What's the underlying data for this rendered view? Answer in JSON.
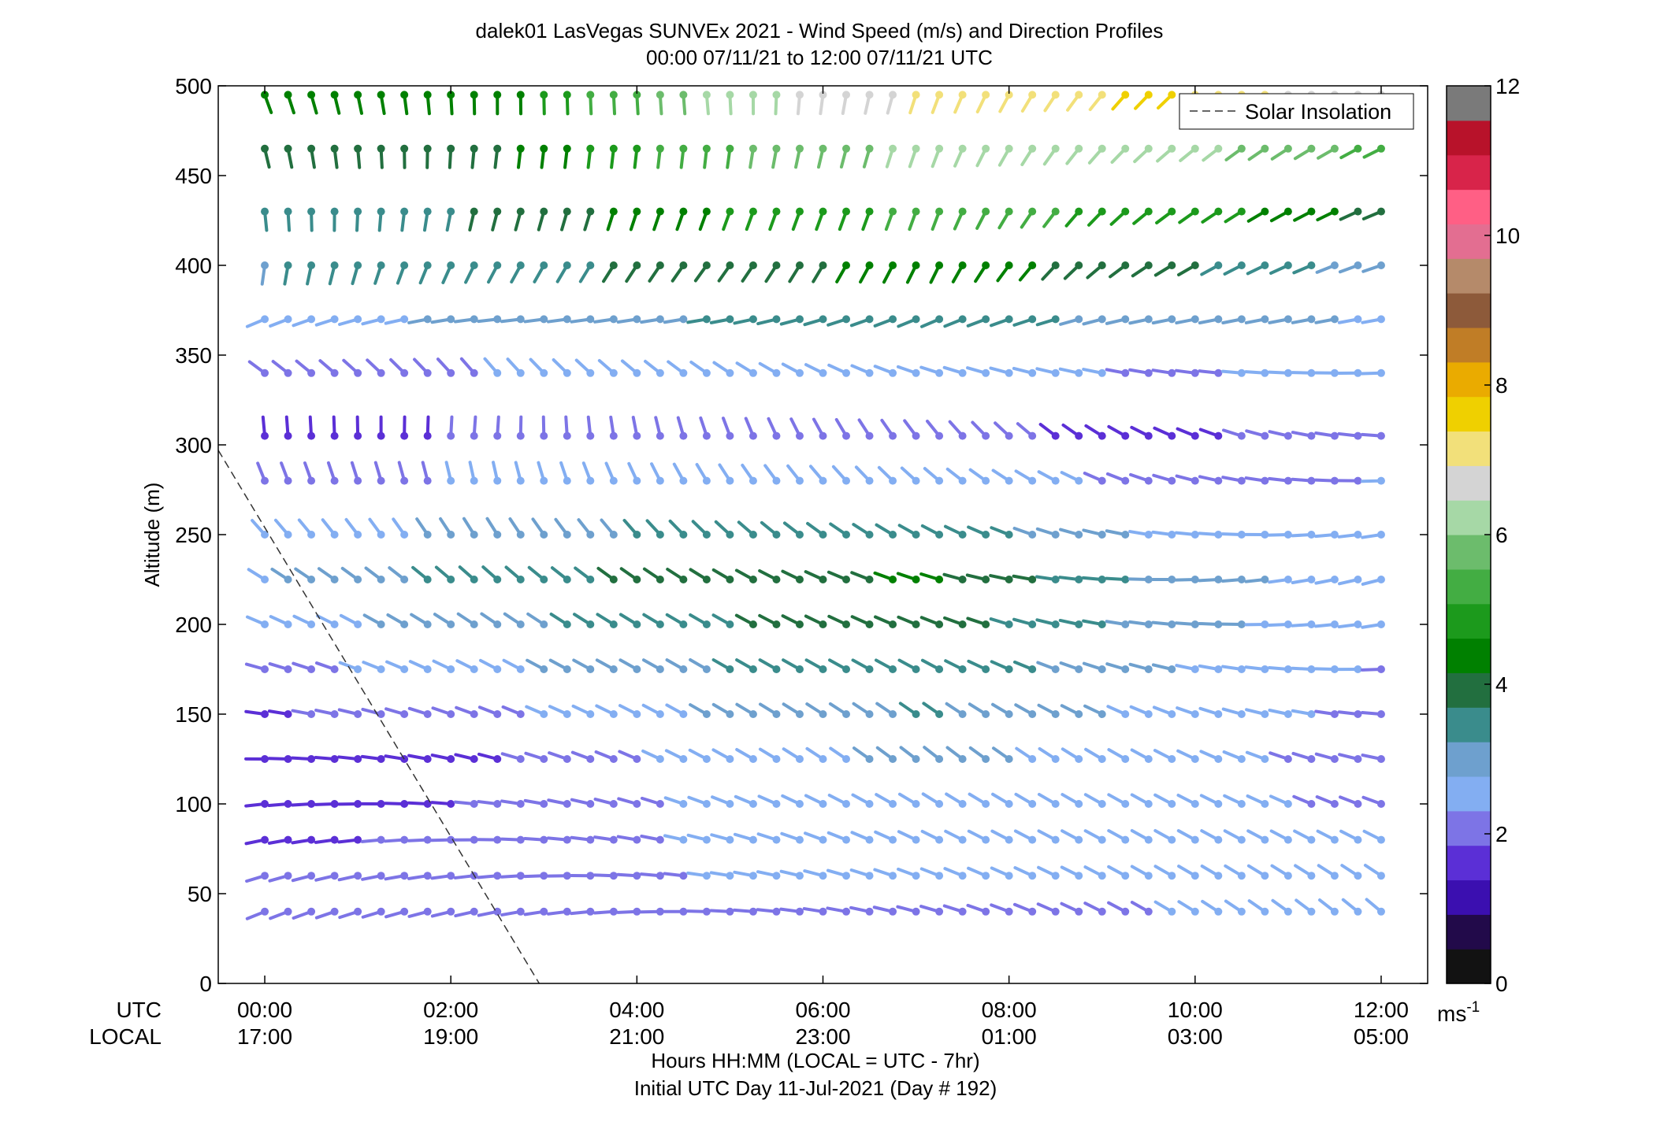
{
  "chart_data": {
    "type": "wind_barb_profile",
    "title_line1": "dalek01 LasVegas SUNVEx 2021 - Wind Speed (m/s) and Direction Profiles",
    "title_line2": "00:00 07/11/21 to 12:00 07/11/21  UTC",
    "ylabel": "Altitude (m)",
    "xlabel_line1": "Hours HH:MM  (LOCAL = UTC - 7hr)",
    "xlabel_line2": "Initial UTC Day 11-Jul-2021 (Day # 192)",
    "xlim_hours": [
      -0.5,
      12.5
    ],
    "ylim": [
      0,
      500
    ],
    "y_ticks": [
      0,
      50,
      100,
      150,
      200,
      250,
      300,
      350,
      400,
      450,
      500
    ],
    "x_row_labels": {
      "utc": "UTC",
      "local": "LOCAL"
    },
    "x_ticks": [
      {
        "hour": 0,
        "utc": "00:00",
        "local": "17:00"
      },
      {
        "hour": 2,
        "utc": "02:00",
        "local": "19:00"
      },
      {
        "hour": 4,
        "utc": "04:00",
        "local": "21:00"
      },
      {
        "hour": 6,
        "utc": "06:00",
        "local": "23:00"
      },
      {
        "hour": 8,
        "utc": "08:00",
        "local": "01:00"
      },
      {
        "hour": 10,
        "utc": "10:00",
        "local": "03:00"
      },
      {
        "hour": 12,
        "utc": "12:00",
        "local": "05:00"
      }
    ],
    "legend": {
      "label": "Solar Insolation",
      "placement": "top-right"
    },
    "solar_insolation_line": {
      "hour": [
        -0.5,
        2.95
      ],
      "altitude": [
        297,
        0
      ]
    },
    "colorbar": {
      "unit": "ms",
      "unit_exp": "-1",
      "range": [
        0,
        12
      ],
      "ticks": [
        "0",
        "2",
        "4",
        "6",
        "8",
        "10",
        "12"
      ],
      "colors": [
        "#121212",
        "#220a4a",
        "#3b0fb0",
        "#5b2fd6",
        "#7d74e6",
        "#83aef2",
        "#6ea0ce",
        "#3a8c8c",
        "#226f3f",
        "#008000",
        "#1c9a1c",
        "#43ad43",
        "#6cbc6c",
        "#a6d8a6",
        "#d4d4d4",
        "#f2e07a",
        "#efd000",
        "#eaab00",
        "#c07d26",
        "#8d5a3a",
        "#b58a6a",
        "#e36e91",
        "#ff5f85",
        "#d8244a",
        "#b8122a",
        "#7a7a7a"
      ]
    },
    "time_step_hours": 0.25,
    "altitudes": [
      40,
      60,
      80,
      100,
      125,
      150,
      175,
      200,
      225,
      250,
      280,
      305,
      340,
      370,
      400,
      430,
      465,
      495
    ],
    "dir_keys": [
      [
        248,
        258,
        272,
        286,
        300,
        310
      ],
      [
        272,
        286,
        300,
        310,
        298,
        280
      ],
      [
        300,
        310,
        300,
        286,
        270,
        255
      ],
      [
        0,
        10,
        345,
        325,
        298,
        276
      ],
      [
        180,
        200,
        210,
        200,
        235,
        250
      ],
      [
        160,
        180,
        175,
        200,
        225,
        240
      ]
    ],
    "speed_keys": [
      [
        2.0,
        2.0,
        2.3,
        2.2,
        2.3,
        2.5
      ],
      [
        1.5,
        1.8,
        2.5,
        3.0,
        2.5,
        2.1
      ],
      [
        2.8,
        3.5,
        4.0,
        4.3,
        3.2,
        2.5
      ],
      [
        1.4,
        1.8,
        2.0,
        1.8,
        1.5,
        2.2
      ],
      [
        3.3,
        3.5,
        4.0,
        4.5,
        4.0,
        3.0
      ],
      [
        4.5,
        4.2,
        6.2,
        7.0,
        7.5,
        6.5
      ]
    ]
  }
}
